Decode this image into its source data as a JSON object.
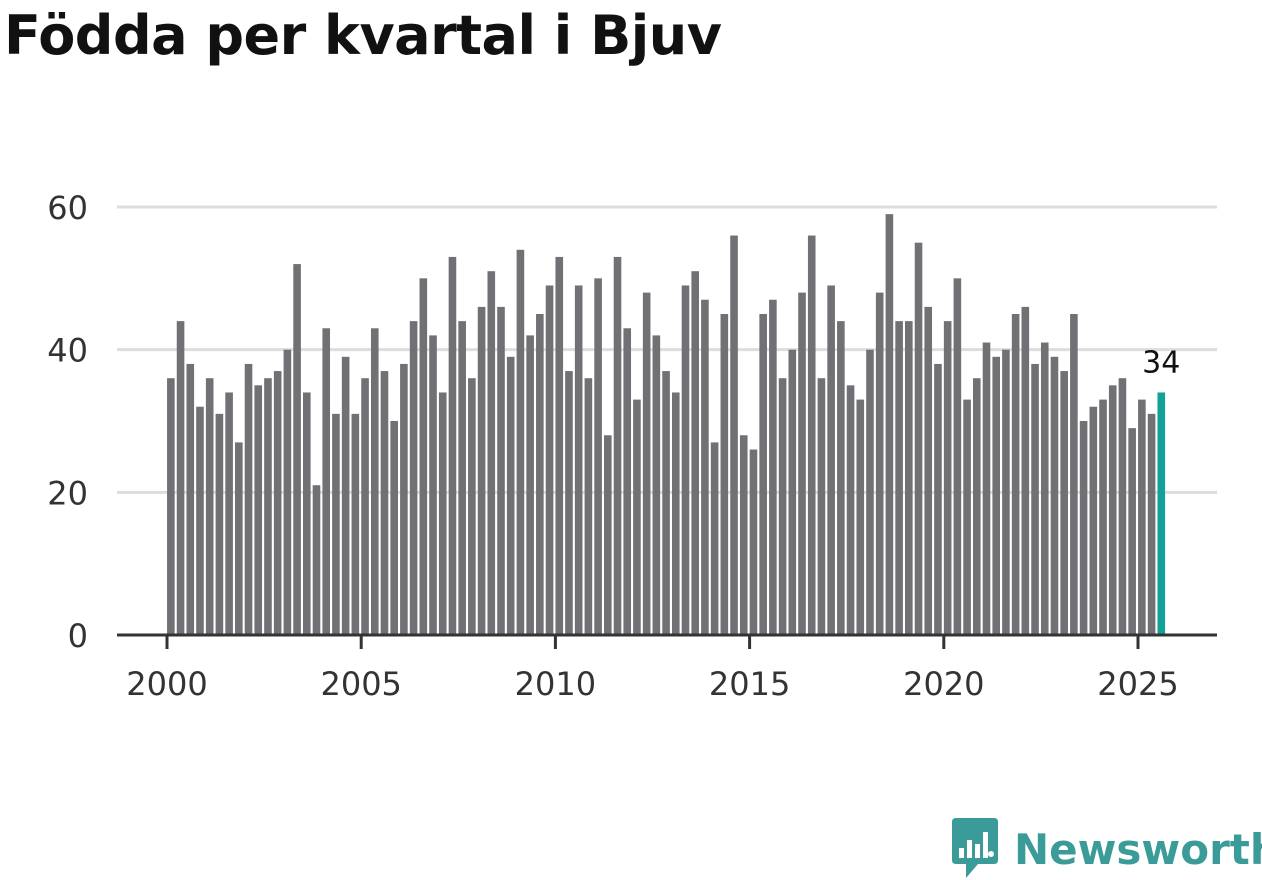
{
  "title": "Födda per kvartal i Bjuv",
  "brand": {
    "name": "Newsworthy",
    "color": "#3b9b98"
  },
  "colors": {
    "bar": "#717075",
    "highlight": "#13a096",
    "grid": "#dddddd",
    "axis": "#333333"
  },
  "chart_data": {
    "type": "bar",
    "title": "Födda per kvartal i Bjuv",
    "xlabel": "",
    "ylabel": "",
    "ylim": [
      0,
      60
    ],
    "yticks": [
      0,
      20,
      40,
      60
    ],
    "xticks": [
      "2000",
      "2005",
      "2010",
      "2015",
      "2020",
      "2025"
    ],
    "first_period": "2000 Q1",
    "last_period": "2025 Q3",
    "highlight_label": "34",
    "grid": true,
    "legend": "none",
    "series": [
      {
        "values": [
          36,
          44,
          38,
          32,
          36,
          31,
          34,
          27,
          38,
          35,
          36,
          37,
          40,
          52,
          34,
          21,
          43,
          31,
          39,
          31,
          36,
          43,
          37,
          30,
          38,
          44,
          50,
          42,
          34,
          53,
          44,
          36,
          46,
          51,
          46,
          39,
          54,
          42,
          45,
          49,
          53,
          37,
          49,
          36,
          50,
          28,
          53,
          43,
          33,
          48,
          42,
          37,
          34,
          49,
          51,
          47,
          27,
          45,
          56,
          28,
          26,
          45,
          47,
          36,
          40,
          48,
          56,
          36,
          49,
          44,
          35,
          33,
          40,
          48,
          59,
          44,
          44,
          55,
          46,
          38,
          44,
          50,
          33,
          36,
          41,
          39,
          40,
          45,
          46,
          38,
          41,
          39,
          37,
          45,
          30,
          32,
          33,
          35,
          36,
          29,
          33,
          31,
          34
        ]
      }
    ]
  }
}
